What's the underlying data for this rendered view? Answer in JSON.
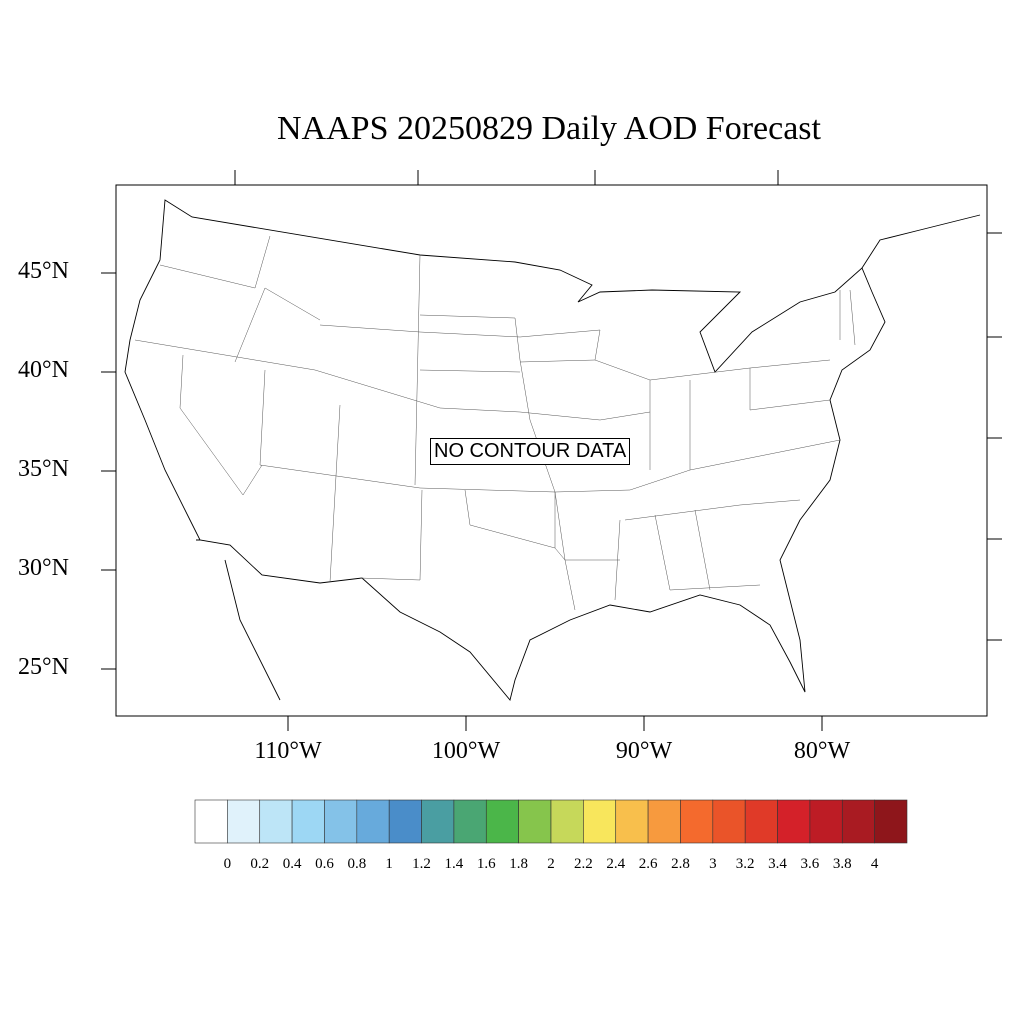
{
  "title": "NAAPS 20250829 Daily AOD Forecast",
  "no_data_label": "NO CONTOUR DATA",
  "lat_labels": [
    "45°N",
    "40°N",
    "35°N",
    "30°N",
    "25°N"
  ],
  "lon_labels": [
    "110°W",
    "100°W",
    "90°W",
    "80°W"
  ],
  "colorbar": {
    "labels": [
      "0",
      "0.2",
      "0.4",
      "0.6",
      "0.8",
      "1",
      "1.2",
      "1.4",
      "1.6",
      "1.8",
      "2",
      "2.2",
      "2.4",
      "2.6",
      "2.8",
      "3",
      "3.2",
      "3.4",
      "3.6",
      "3.8",
      "4"
    ],
    "colors": [
      "#ffffff",
      "#e0f2fb",
      "#bde5f7",
      "#9dd7f4",
      "#84c2e8",
      "#67aadc",
      "#4a8dc9",
      "#4a9ea2",
      "#4aa673",
      "#4bb649",
      "#86c54c",
      "#c6d85a",
      "#f8e65c",
      "#f8bf4c",
      "#f79a3e",
      "#f46a2d",
      "#ea5429",
      "#e03a28",
      "#d42129",
      "#bd1c25",
      "#a91b22",
      "#8e161b"
    ]
  }
}
